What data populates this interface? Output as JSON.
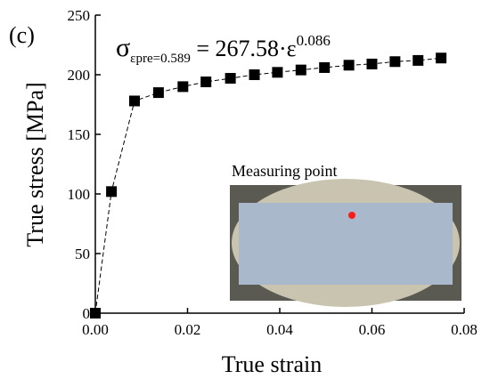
{
  "chart_data": {
    "type": "line",
    "panel_label": "(c)",
    "equation": {
      "symbol": "σ",
      "subscript": "εpre=0.589",
      "body": " = 267.58·ε",
      "exponent": "0.086"
    },
    "inset_label": "Measuring point",
    "x_label": "True strain",
    "y_label": "True stress  [MPa]",
    "xlim": [
      0,
      0.08
    ],
    "xticks": [
      {
        "value": 0,
        "label": "0.00"
      },
      0.02,
      0.04,
      0.06,
      0.08
    ],
    "ylim": [
      0,
      250
    ],
    "yticks": [
      0,
      50,
      100,
      150,
      200,
      250
    ],
    "x": [
      0,
      0.0035,
      0.0085,
      0.0137,
      0.019,
      0.024,
      0.0293,
      0.0345,
      0.0395,
      0.0446,
      0.0497,
      0.055,
      0.06,
      0.065,
      0.07,
      0.075
    ],
    "series": [
      {
        "color": "#000000",
        "values": [
          0,
          102,
          178,
          185,
          190,
          194,
          197,
          200,
          202,
          204,
          206,
          208,
          209,
          211,
          212,
          214
        ]
      }
    ]
  }
}
